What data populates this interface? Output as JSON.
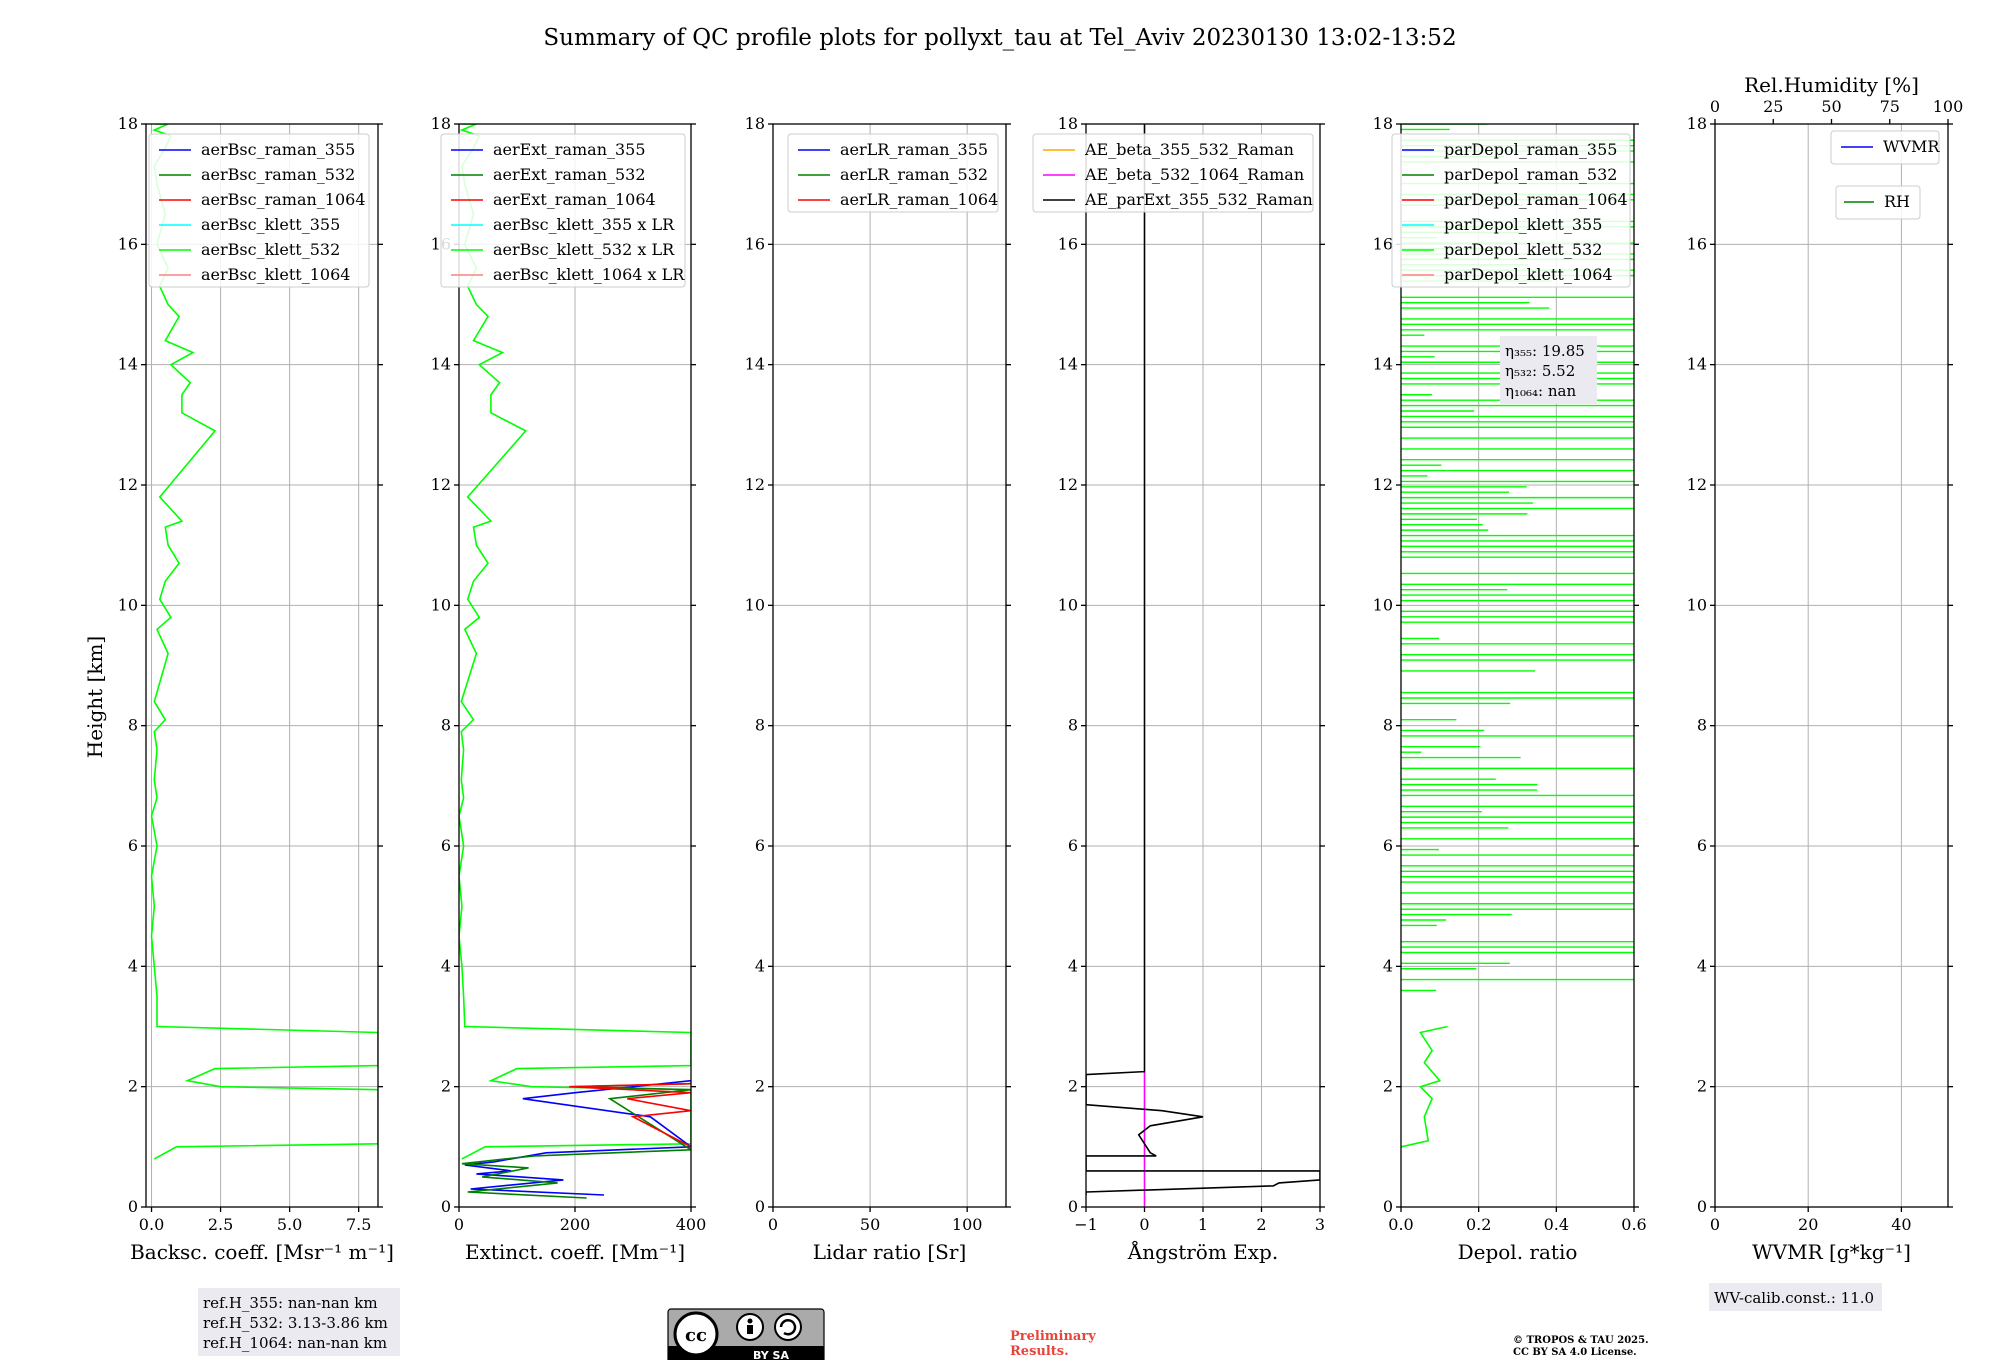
{
  "title": "Summary of QC profile plots for pollyxt_tau at Tel_Aviv 20230130 13:02-13:52",
  "ylabel": "Height [km]",
  "chart_data": [
    {
      "id": "backscatter",
      "type": "line",
      "xlabel": "Backsc. coeff. [Msr⁻¹ m⁻¹]",
      "xlim": [
        -0.2,
        8.2
      ],
      "xticks": [
        0,
        2.5,
        5.0,
        7.5
      ],
      "xtick_labels": [
        "0.0",
        "2.5",
        "5.0",
        "7.5"
      ],
      "ylim": [
        0,
        18
      ],
      "yticks": [
        0,
        2,
        4,
        6,
        8,
        10,
        12,
        14,
        16,
        18
      ],
      "legend": [
        {
          "label": "aerBsc_raman_355",
          "color": "#0000ff"
        },
        {
          "label": "aerBsc_raman_532",
          "color": "#008000"
        },
        {
          "label": "aerBsc_raman_1064",
          "color": "#ff0000"
        },
        {
          "label": "aerBsc_klett_355",
          "color": "#00ffff"
        },
        {
          "label": "aerBsc_klett_532",
          "color": "#00ff00"
        },
        {
          "label": "aerBsc_klett_1064",
          "color": "#ff8080"
        }
      ],
      "series": [
        {
          "name": "aerBsc_klett_532",
          "color": "#00ff00",
          "x": [
            0.1,
            0.9,
            8.2,
            8.2,
            2.5,
            1.3,
            2.3,
            8.2,
            8.2,
            0.2,
            0.2,
            0.1,
            0.0,
            0.1,
            0.0,
            0.2,
            0.0,
            0.2,
            0.1,
            0.2,
            0.1,
            0.5,
            0.1,
            0.6,
            0.2,
            0.7,
            0.3,
            0.5,
            1.0,
            0.6,
            0.5,
            1.1,
            0.3,
            2.3,
            1.1,
            1.1,
            1.4,
            0.7,
            1.5,
            0.5,
            1.0,
            0.6,
            0.3,
            0.6,
            0.2,
            0.5,
            0.2,
            0.1,
            0.5,
            0.7,
            0.1,
            0.6,
            0.1
          ],
          "y": [
            0.8,
            1.0,
            1.05,
            1.95,
            2.0,
            2.1,
            2.3,
            2.35,
            2.9,
            3.0,
            3.5,
            4.0,
            4.5,
            5.0,
            5.5,
            6.0,
            6.5,
            6.8,
            7.1,
            7.6,
            7.9,
            8.1,
            8.4,
            9.2,
            9.6,
            9.8,
            10.1,
            10.4,
            10.7,
            11.0,
            11.3,
            11.4,
            11.8,
            12.9,
            13.2,
            13.5,
            13.7,
            14.0,
            14.2,
            14.4,
            14.8,
            15.0,
            15.3,
            15.6,
            16.0,
            16.5,
            17.0,
            17.3,
            17.6,
            17.8,
            17.9,
            18.0,
            18.0
          ]
        }
      ],
      "annotation": [
        "ref.H_355: nan-nan km",
        "ref.H_532: 3.13-3.86 km",
        "ref.H_1064: nan-nan km"
      ]
    },
    {
      "id": "extinction",
      "type": "line",
      "xlabel": "Extinct. coeff. [Mm⁻¹]",
      "xlim": [
        0,
        400
      ],
      "xticks": [
        0,
        200,
        400
      ],
      "xtick_labels": [
        "0",
        "200",
        "400"
      ],
      "ylim": [
        0,
        18
      ],
      "yticks": [
        0,
        2,
        4,
        6,
        8,
        10,
        12,
        14,
        16,
        18
      ],
      "legend": [
        {
          "label": "aerExt_raman_355",
          "color": "#0000ff"
        },
        {
          "label": "aerExt_raman_532",
          "color": "#008000"
        },
        {
          "label": "aerExt_raman_1064",
          "color": "#ff0000"
        },
        {
          "label": "aerBsc_klett_355 x LR",
          "color": "#00ffff"
        },
        {
          "label": "aerBsc_klett_532 x LR",
          "color": "#00ff00"
        },
        {
          "label": "aerBsc_klett_1064 x LR",
          "color": "#ff8080"
        }
      ],
      "series": [
        {
          "name": "aerBsc_klett_532 x LR",
          "color": "#00ff00",
          "x": [
            5,
            45,
            400,
            400,
            125,
            55,
            100,
            400,
            400,
            10,
            8,
            5,
            0,
            5,
            0,
            8,
            0,
            8,
            4,
            8,
            4,
            25,
            4,
            30,
            10,
            35,
            15,
            25,
            50,
            30,
            25,
            55,
            15,
            115,
            55,
            55,
            70,
            35,
            75,
            25,
            50,
            30,
            15,
            30,
            10,
            25,
            10,
            5,
            25,
            35,
            5,
            30,
            5
          ],
          "y": [
            0.8,
            1.0,
            1.05,
            1.95,
            2.0,
            2.1,
            2.3,
            2.35,
            2.9,
            3.0,
            3.5,
            4.0,
            4.5,
            5.0,
            5.5,
            6.0,
            6.5,
            6.8,
            7.1,
            7.6,
            7.9,
            8.1,
            8.4,
            9.2,
            9.6,
            9.8,
            10.1,
            10.4,
            10.7,
            11.0,
            11.3,
            11.4,
            11.8,
            12.9,
            13.2,
            13.5,
            13.7,
            14.0,
            14.2,
            14.4,
            14.8,
            15.0,
            15.3,
            15.6,
            16.0,
            16.5,
            17.0,
            17.3,
            17.6,
            17.8,
            17.9,
            18.0,
            18.0
          ]
        },
        {
          "name": "aerExt_raman_355",
          "color": "#0000ff",
          "x": [
            250,
            20,
            180,
            30,
            90,
            10,
            60,
            150,
            400,
            330,
            110,
            200,
            400
          ],
          "y": [
            0.2,
            0.3,
            0.45,
            0.55,
            0.6,
            0.7,
            0.75,
            0.9,
            1.0,
            1.5,
            1.8,
            1.9,
            2.1
          ]
        },
        {
          "name": "aerExt_raman_532",
          "color": "#008000",
          "x": [
            220,
            15,
            170,
            40,
            120,
            5,
            80,
            130,
            400,
            260,
            400,
            200,
            400
          ],
          "y": [
            0.15,
            0.25,
            0.4,
            0.5,
            0.65,
            0.72,
            0.8,
            0.85,
            0.95,
            1.8,
            1.95,
            2.0,
            2.05
          ]
        },
        {
          "name": "aerExt_raman_1064",
          "color": "#ff0000",
          "x": [
            400,
            300,
            400,
            290,
            400,
            190,
            400
          ],
          "y": [
            1.0,
            1.5,
            1.6,
            1.8,
            1.9,
            2.0,
            2.05
          ]
        }
      ]
    },
    {
      "id": "lidar_ratio",
      "type": "line",
      "xlabel": "Lidar ratio [Sr]",
      "xlim": [
        0,
        120
      ],
      "xticks": [
        0,
        50,
        100
      ],
      "xtick_labels": [
        "0",
        "50",
        "100"
      ],
      "ylim": [
        0,
        18
      ],
      "yticks": [
        0,
        2,
        4,
        6,
        8,
        10,
        12,
        14,
        16,
        18
      ],
      "legend": [
        {
          "label": "aerLR_raman_355",
          "color": "#0000ff"
        },
        {
          "label": "aerLR_raman_532",
          "color": "#008000"
        },
        {
          "label": "aerLR_raman_1064",
          "color": "#ff0000"
        }
      ],
      "series": []
    },
    {
      "id": "angstrom",
      "type": "line",
      "xlabel": "Ångström Exp.",
      "xlim": [
        -1,
        3
      ],
      "xticks": [
        -1,
        0,
        1,
        2,
        3
      ],
      "xtick_labels": [
        "−1",
        "0",
        "1",
        "2",
        "3"
      ],
      "ylim": [
        0,
        18
      ],
      "yticks": [
        0,
        2,
        4,
        6,
        8,
        10,
        12,
        14,
        16,
        18
      ],
      "legend": [
        {
          "label": "AE_beta_355_532_Raman",
          "color": "#ffa500"
        },
        {
          "label": "AE_beta_532_1064_Raman",
          "color": "#ff00ff"
        },
        {
          "label": "AE_parExt_355_532_Raman",
          "color": "#000000"
        }
      ],
      "series": [
        {
          "name": "AE_beta_532_1064_Raman",
          "color": "#ff00ff",
          "x": [
            0,
            0
          ],
          "y": [
            0,
            2.25
          ]
        },
        {
          "name": "AE_parExt_355_532_Raman",
          "color": "#000000",
          "x": [
            -1,
            -1,
            2.2,
            2.3,
            3,
            3,
            -1,
            -1,
            0.2,
            0.1,
            -0.1,
            0.1,
            1.0,
            0.3,
            -1,
            -1,
            0,
            0,
            0
          ],
          "y": [
            0.2,
            0.25,
            0.35,
            0.4,
            0.45,
            0.6,
            0.6,
            0.85,
            0.85,
            0.9,
            1.2,
            1.35,
            1.5,
            1.6,
            1.7,
            2.2,
            2.25,
            16.5,
            18
          ]
        }
      ]
    },
    {
      "id": "depolarization",
      "type": "line",
      "xlabel": "Depol. ratio",
      "xlim": [
        0,
        0.6
      ],
      "xticks": [
        0,
        0.2,
        0.4,
        0.6
      ],
      "xtick_labels": [
        "0.0",
        "0.2",
        "0.4",
        "0.6"
      ],
      "ylim": [
        0,
        18
      ],
      "yticks": [
        0,
        2,
        4,
        6,
        8,
        10,
        12,
        14,
        16,
        18
      ],
      "legend": [
        {
          "label": "parDepol_raman_355",
          "color": "#0000ff"
        },
        {
          "label": "parDepol_raman_532",
          "color": "#008000"
        },
        {
          "label": "parDepol_raman_1064",
          "color": "#ff0000"
        },
        {
          "label": "parDepol_klett_355",
          "color": "#00ffff"
        },
        {
          "label": "parDepol_klett_532",
          "color": "#00ff00"
        },
        {
          "label": "parDepol_klett_1064",
          "color": "#ff8080"
        }
      ],
      "series": [
        {
          "name": "parDepol_klett_532",
          "color": "#00ff00",
          "x": [
            0.0,
            0.07,
            0.06,
            0.08,
            0.05,
            0.1,
            0.06,
            0.08,
            0.05,
            0.12
          ],
          "y": [
            1.0,
            1.1,
            1.5,
            1.8,
            2.0,
            2.1,
            2.4,
            2.6,
            2.9,
            3.0
          ]
        }
      ],
      "noisy_region_km": [
        3.6,
        18.0
      ],
      "annotation": [
        "η₃₅₅: 19.85",
        "η₅₃₂: 5.52",
        "η₁₀₆₄: nan"
      ]
    },
    {
      "id": "water_vapor",
      "type": "line",
      "xlabel": "WVMR [g*kg⁻¹]",
      "xlim": [
        0,
        50
      ],
      "xticks": [
        0,
        20,
        40
      ],
      "xtick_labels": [
        "0",
        "20",
        "40"
      ],
      "top_xlabel": "Rel.Humidity [%]",
      "top_xlim": [
        0,
        100
      ],
      "top_xticks": [
        0,
        25,
        50,
        75,
        100
      ],
      "top_xtick_labels": [
        "0",
        "25",
        "50",
        "75",
        "100"
      ],
      "ylim": [
        0,
        18
      ],
      "yticks": [
        0,
        2,
        4,
        6,
        8,
        10,
        12,
        14,
        16,
        18
      ],
      "legend": [
        {
          "label": "WVMR",
          "color": "#0000ff"
        }
      ],
      "legend2": [
        {
          "label": "RH",
          "color": "#008000"
        }
      ],
      "series": [],
      "annotation": [
        "WV-calib.const.: 11.0"
      ]
    }
  ],
  "footer": {
    "cc_label": "BY  SA",
    "preliminary": [
      "Preliminary",
      "Results."
    ],
    "copyright": [
      "© TROPOS & TAU 2025.",
      "CC BY SA 4.0 License."
    ]
  }
}
